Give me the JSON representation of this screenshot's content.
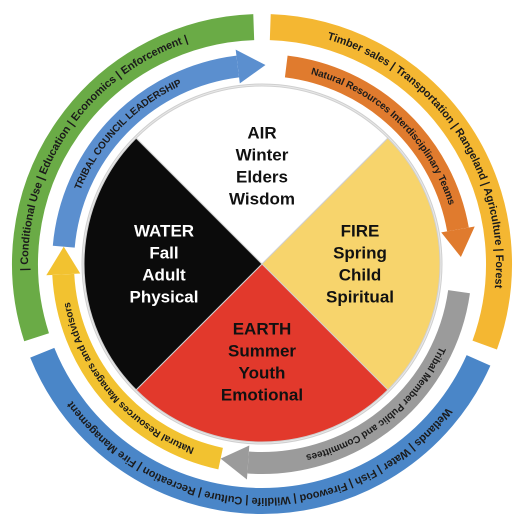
{
  "outer_ring": [
    {
      "label": "| Conditional Use | Education | Economics | Enforcement |"
    },
    {
      "label": "Timber sales | Transportation | Rangeland | Agriculture | Forest"
    },
    {
      "label": "Wetlands | Water | Fish | Firewood | Wildlife | Culture | Recreation | Fire Management"
    }
  ],
  "inner_ring": [
    {
      "label": "TRIBAL COUNCIL LEADERSHIP"
    },
    {
      "label": "Natural Resources Interdisciplinary Teams"
    },
    {
      "label": "Tribal Member Public and Committees"
    },
    {
      "label": "Natural Resources Managers and Advisors"
    }
  ],
  "quadrants": [
    {
      "element": "AIR",
      "season": "Winter",
      "stage": "Elders",
      "aspect": "Wisdom"
    },
    {
      "element": "FIRE",
      "season": "Spring",
      "stage": "Child",
      "aspect": "Spiritual"
    },
    {
      "element": "EARTH",
      "season": "Summer",
      "stage": "Youth",
      "aspect": "Emotional"
    },
    {
      "element": "WATER",
      "season": "Fall",
      "stage": "Adult",
      "aspect": "Physical"
    }
  ]
}
